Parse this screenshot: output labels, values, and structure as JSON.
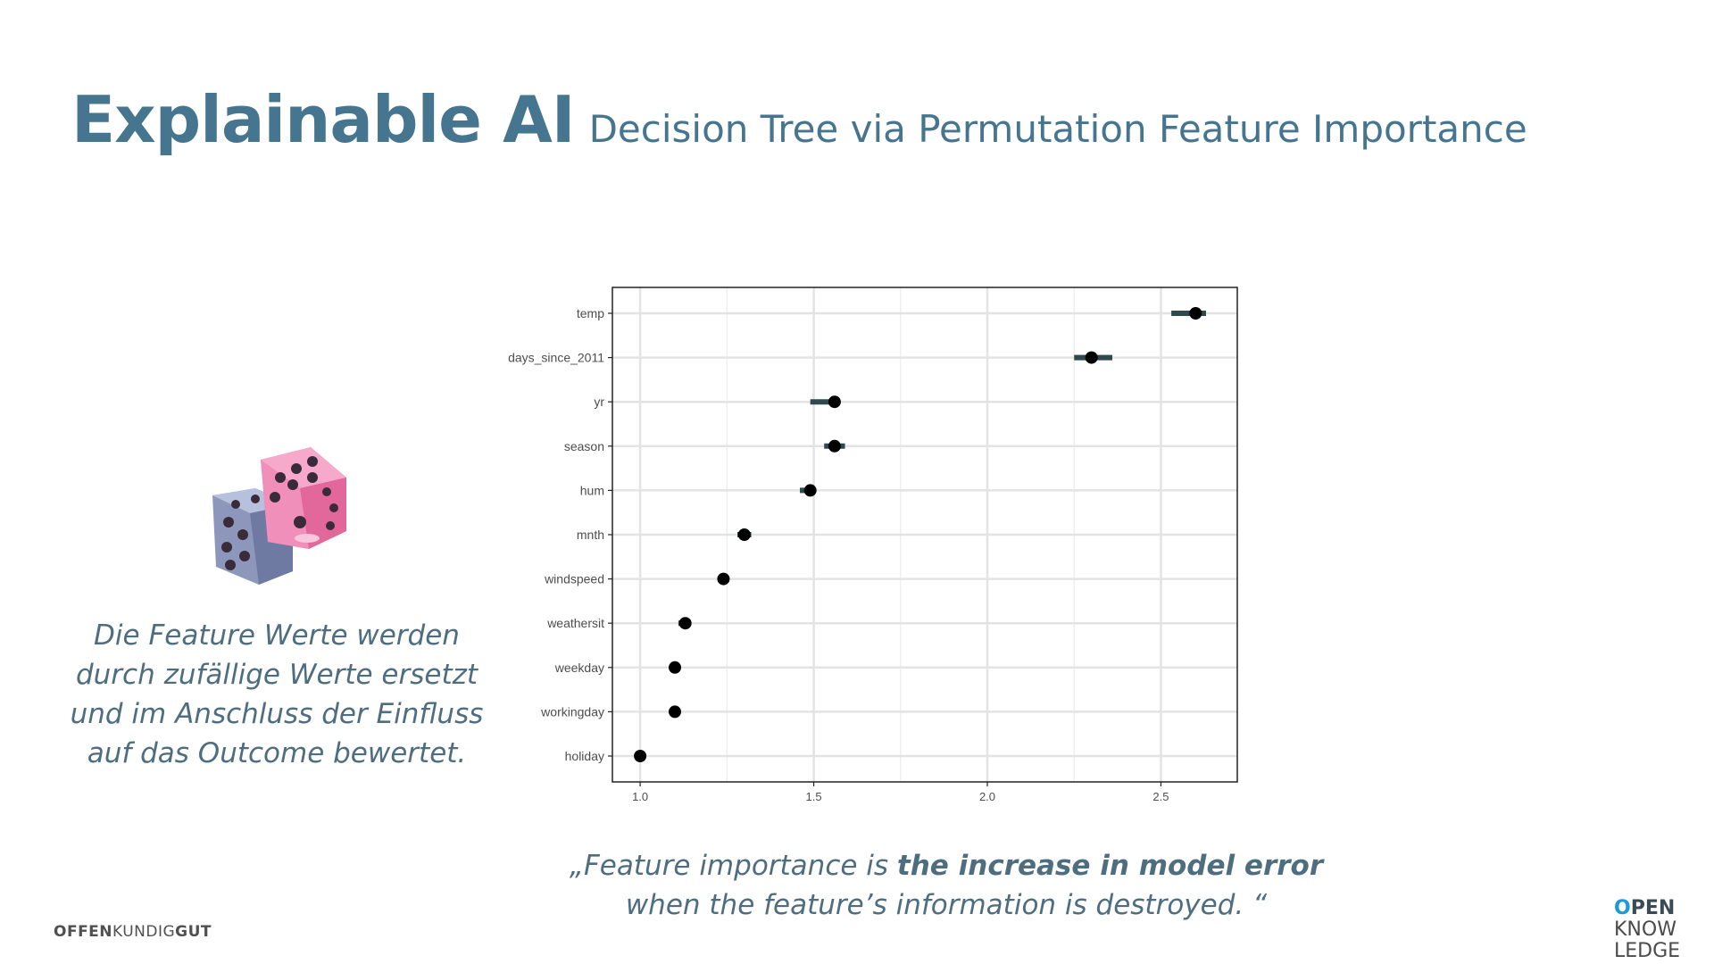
{
  "slide": {
    "title": "Explainable AI",
    "subtitle": "Decision Tree via Permutation Feature Importance"
  },
  "description": {
    "lines": [
      "Die Feature Werte werden",
      "durch zufällige Werte ersetzt",
      "und im Anschluss der Einfluss",
      "auf das Outcome bewertet."
    ]
  },
  "quote": {
    "line1_pre": "„Feature importance is ",
    "line1_bold": "the increase in model error",
    "line2": "when the feature’s information is destroyed. “"
  },
  "footer": {
    "brand_left_1": "OFFEN",
    "brand_left_2": "KUNDIG",
    "brand_left_3": "GUT",
    "brand_right_1": "PEN",
    "brand_right_ring": "O",
    "brand_right_2": "KNOW",
    "brand_right_3": "LEDGE"
  },
  "icons": {
    "dice": "dice-icon"
  },
  "colors": {
    "title": "#46758f",
    "text": "#4e6e80",
    "point": "#000000",
    "interval": "#2f4a4f",
    "grid": "#e6e6e6"
  },
  "chart_data": {
    "type": "scatter",
    "categories": [
      "temp",
      "days_since_2011",
      "yr",
      "season",
      "hum",
      "mnth",
      "windspeed",
      "weathersit",
      "weekday",
      "workingday",
      "holiday"
    ],
    "values": [
      2.6,
      2.3,
      1.56,
      1.56,
      1.49,
      1.3,
      1.24,
      1.13,
      1.1,
      1.1,
      1.0
    ],
    "lower": [
      2.53,
      2.25,
      1.49,
      1.53,
      1.46,
      1.28,
      1.24,
      1.11,
      1.1,
      1.1,
      1.0
    ],
    "upper": [
      2.63,
      2.36,
      1.57,
      1.59,
      1.5,
      1.32,
      1.24,
      1.14,
      1.1,
      1.1,
      1.0
    ],
    "xticks": [
      1.0,
      1.5,
      2.0,
      2.5
    ],
    "xtick_labels": [
      "1.0",
      "1.5",
      "2.0",
      "2.5"
    ],
    "xlim": [
      0.92,
      2.72
    ],
    "grid": true,
    "xlabel": "",
    "ylabel": ""
  }
}
